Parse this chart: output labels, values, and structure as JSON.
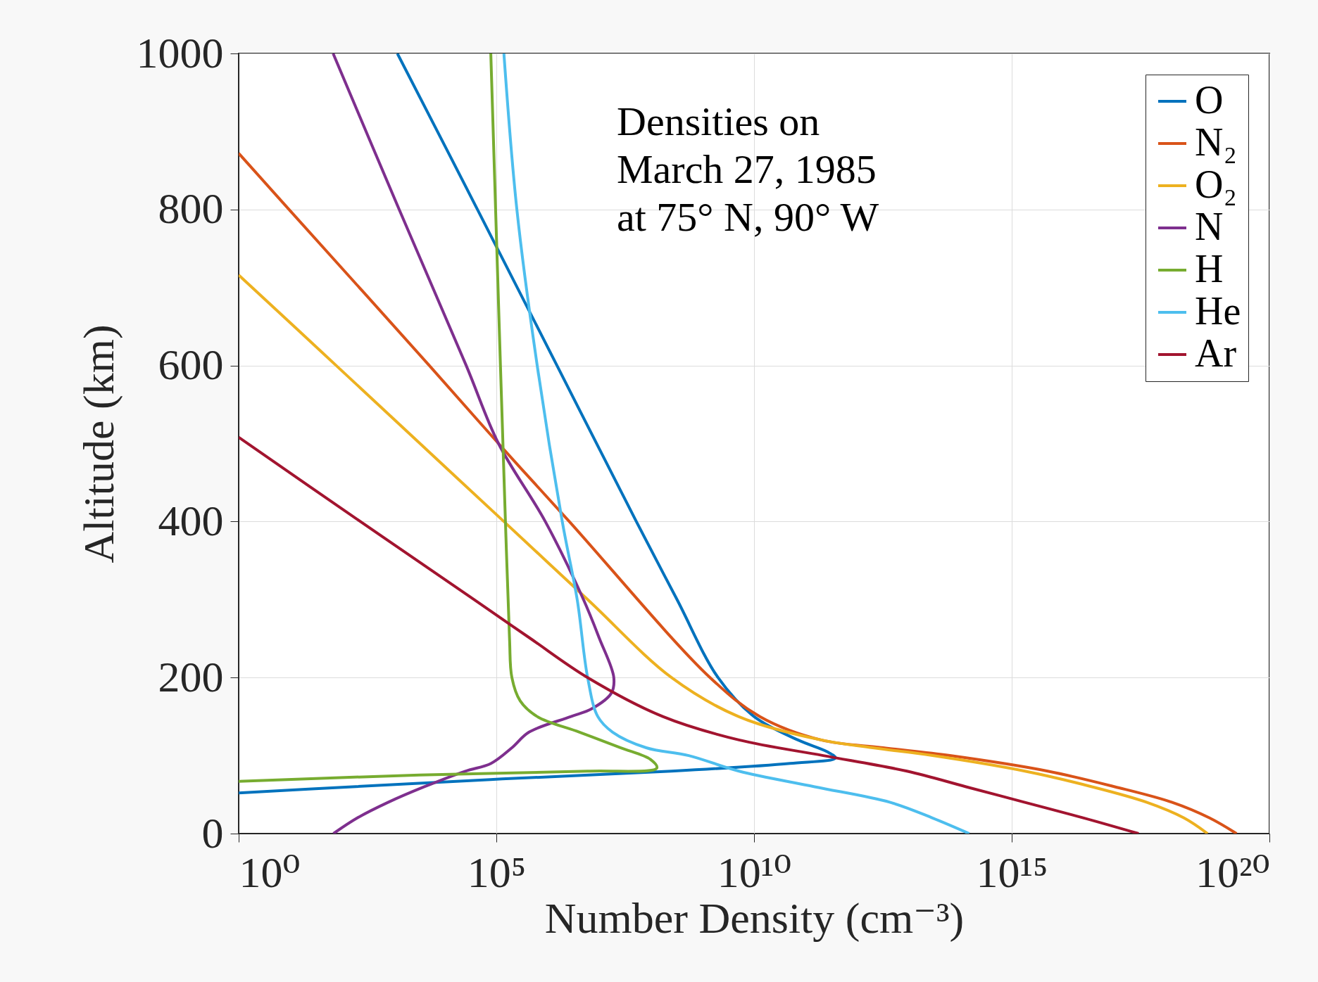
{
  "chart_data": {
    "type": "line",
    "xlabel": "Number Density (cm⁻³)",
    "ylabel": "Altitude (km)",
    "annotations": [
      "Densities on\nMarch 27, 1985\nat 75° N, 90° W"
    ],
    "log": "x",
    "grid": true,
    "legend": "top right",
    "line_style": "solid",
    "marker": "none",
    "xlim": [
      1,
      1e+20
    ],
    "ylim": [
      0,
      1000
    ],
    "xticks": [
      {
        "value": 1,
        "label": "10⁰"
      },
      {
        "value": 100000.0,
        "label": "10⁵"
      },
      {
        "value": 10000000000.0,
        "label": "10¹⁰"
      },
      {
        "value": 1000000000000000.0,
        "label": "10¹⁵"
      },
      {
        "value": 1e+20,
        "label": "10²⁰"
      }
    ],
    "yticks": [
      0,
      200,
      400,
      600,
      800,
      1000
    ],
    "series": [
      {
        "name": "O",
        "color": "#0072bd",
        "x": [
          1200.0,
          43000.0,
          1500000.0,
          52000000.0,
          320000000.0,
          2000000000.0,
          10000000000.0,
          71000000000.0,
          260000000000.0,
          380000000000.0,
          50000000000.0,
          250000000.0,
          130000.0,
          160.0,
          1
        ],
        "values": [
          1000,
          800,
          600,
          400,
          300,
          200,
          150,
          120,
          105,
          97,
          90,
          80,
          70,
          60,
          52
        ]
      },
      {
        "name": "N₂",
        "color": "#d95319",
        "x": [
          1,
          9.5,
          5000.0,
          110000.0,
          2600000.0,
          1400000000.0,
          13000000000.0,
          200000000000.0,
          3200000000000.0,
          63000000000000.0,
          5000000000000000.0,
          1e+17,
          1.3e+18,
          6.9e+18,
          2.3e+19
        ],
        "values": [
          872,
          800,
          600,
          500,
          400,
          200,
          150,
          120,
          110,
          100,
          80,
          60,
          40,
          20,
          0
        ]
      },
      {
        "name": "O₂",
        "color": "#edb120",
        "x": [
          1,
          78,
          3300.0,
          140000.0,
          5900000.0,
          250000000.0,
          5000000000.0,
          200000000000.0,
          2000000000000.0,
          29000000000000.0,
          1800000000000000.0,
          3.6e+16,
          4.2e+17,
          2.2e+18,
          6.3e+18
        ],
        "values": [
          716,
          600,
          500,
          400,
          300,
          200,
          150,
          120,
          110,
          100,
          80,
          60,
          40,
          20,
          0
        ]
      },
      {
        "name": "N",
        "color": "#7e2f8e",
        "x": [
          68,
          1300.0,
          26000.0,
          110000.0,
          890000.0,
          4900000.0,
          10000000.0,
          19000000.0,
          17000000.0,
          7100000.0,
          2800000.0,
          430000.0,
          200000.0,
          79000.0,
          25000.0,
          4000.0,
          790.0,
          200.0,
          69
        ],
        "values": [
          1000,
          800,
          600,
          500,
          400,
          300,
          250,
          200,
          180,
          160,
          150,
          130,
          110,
          90,
          80,
          60,
          40,
          20,
          0
        ]
      },
      {
        "name": "H",
        "color": "#77ac30",
        "x": [
          78000.0,
          120000.0,
          150000.0,
          180000.0,
          200000.0,
          290000.0,
          620000.0,
          4100000.0,
          26000000.0,
          98000000.0,
          130000000.0,
          5900000.0,
          3200.0,
          1
        ],
        "values": [
          1000,
          600,
          400,
          250,
          200,
          170,
          150,
          130,
          110,
          95,
          84,
          80,
          75,
          67
        ]
      },
      {
        "name": "He",
        "color": "#4dbeee",
        "x": [
          140000.0,
          250000.0,
          620000.0,
          1900000.0,
          3700000.0,
          5900000.0,
          9300000.0,
          18000000.0,
          81000000.0,
          540000000.0,
          5100000000.0,
          150000000000.0,
          4400000000000.0,
          29000000000000.0,
          150000000000000.0
        ],
        "values": [
          1000,
          800,
          600,
          400,
          300,
          200,
          150,
          130,
          110,
          100,
          80,
          60,
          40,
          20,
          0
        ]
      },
      {
        "name": "Ar",
        "color": "#a2142f",
        "x": [
          1,
          230.0,
          37000.0,
          460000.0,
          5900000.0,
          170000000.0,
          5100000000.0,
          220000000000.0,
          9300000000000.0,
          130000000000000.0,
          1800000000000000.0,
          2.5e+16,
          2.9e+17
        ],
        "values": [
          508,
          400,
          300,
          250,
          200,
          150,
          120,
          100,
          80,
          60,
          40,
          20,
          0
        ]
      }
    ]
  }
}
